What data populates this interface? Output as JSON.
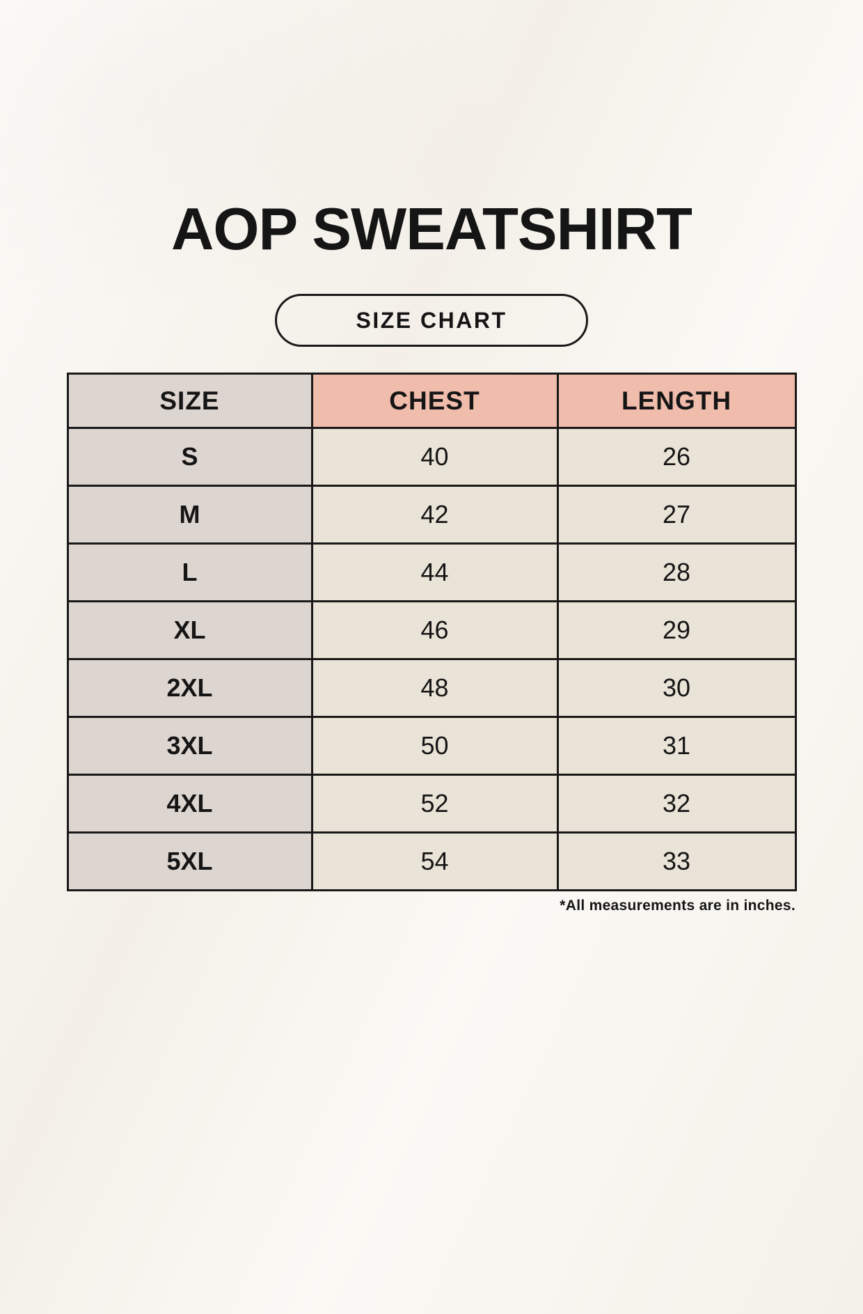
{
  "title": "AOP SWEATSHIRT",
  "badge_label": "SIZE CHART",
  "footnote": "*All measurements are in inches.",
  "colors": {
    "background": "#f8f5ee",
    "header_accent": "#f0bcab",
    "size_column": "#ddd5d0",
    "body_cell": "#eae3d7",
    "border": "#191919",
    "text": "#151515"
  },
  "chart_data": {
    "type": "table",
    "title": "AOP SWEATSHIRT",
    "subtitle": "SIZE CHART",
    "columns": [
      "SIZE",
      "CHEST",
      "LENGTH"
    ],
    "rows": [
      {
        "size": "S",
        "chest": 40,
        "length": 26
      },
      {
        "size": "M",
        "chest": 42,
        "length": 27
      },
      {
        "size": "L",
        "chest": 44,
        "length": 28
      },
      {
        "size": "XL",
        "chest": 46,
        "length": 29
      },
      {
        "size": "2XL",
        "chest": 48,
        "length": 30
      },
      {
        "size": "3XL",
        "chest": 50,
        "length": 31
      },
      {
        "size": "4XL",
        "chest": 52,
        "length": 32
      },
      {
        "size": "5XL",
        "chest": 54,
        "length": 33
      }
    ],
    "units_note": "*All measurements are in inches.",
    "layout": {
      "legend": false,
      "grid": true
    }
  }
}
